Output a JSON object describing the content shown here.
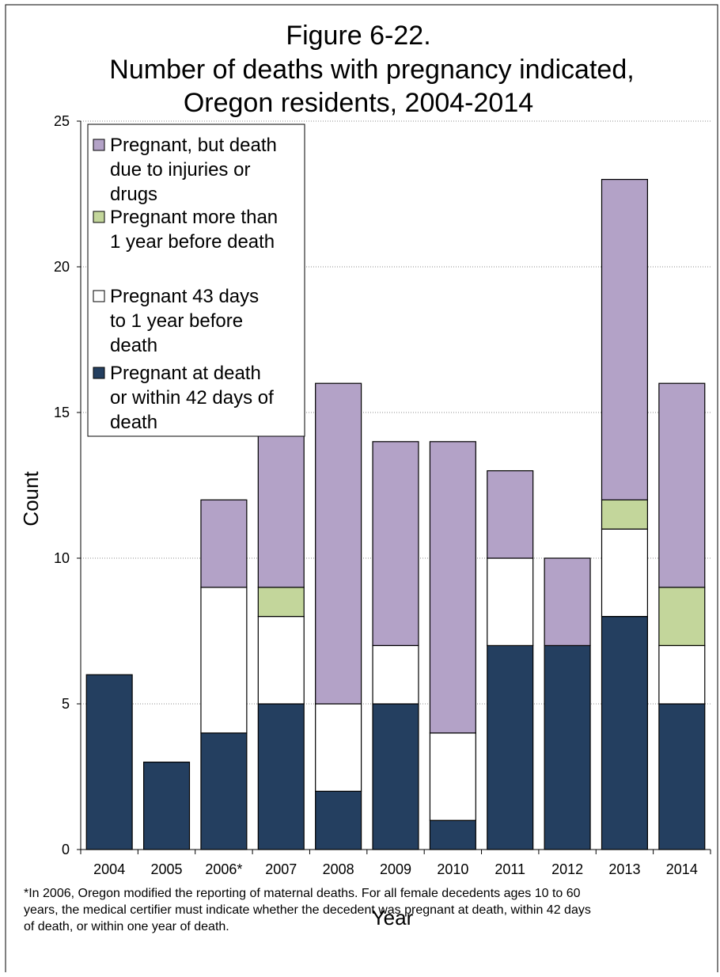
{
  "chart_data": {
    "type": "bar",
    "stacked": true,
    "title": [
      "Figure 6-22.",
      "Number of deaths with pregnancy indicated,",
      "Oregon residents, 2004-2014"
    ],
    "xlabel": "Year",
    "ylabel": "Count",
    "ylim": [
      0,
      25
    ],
    "yticks": [
      0,
      5,
      10,
      15,
      20,
      25
    ],
    "grid": true,
    "legend_position": "top-left",
    "categories": [
      "2004",
      "2005",
      "2006*",
      "2007",
      "2008",
      "2009",
      "2010",
      "2011",
      "2012",
      "2013",
      "2014"
    ],
    "series": [
      {
        "name": "Pregnant at death or within 42 days of death",
        "color": "#243f60",
        "values": [
          6,
          3,
          4,
          5,
          2,
          5,
          1,
          7,
          7,
          8,
          5
        ]
      },
      {
        "name": "Pregnant 43 days to 1 year before death",
        "color": "#ffffff",
        "values": [
          0,
          0,
          5,
          3,
          3,
          2,
          3,
          3,
          0,
          3,
          2
        ]
      },
      {
        "name": "Pregnant more than 1 year before death",
        "color": "#c3d69b",
        "values": [
          0,
          0,
          0,
          1,
          0,
          0,
          0,
          0,
          0,
          1,
          2
        ]
      },
      {
        "name": "Pregnant, but death due to injuries or drugs",
        "color": "#b3a2c7",
        "values": [
          0,
          0,
          3,
          6,
          11,
          7,
          10,
          3,
          3,
          11,
          7
        ]
      }
    ],
    "legend": [
      {
        "series": 3,
        "lines": [
          "Pregnant, but death",
          "due to injuries or",
          "drugs"
        ]
      },
      {
        "series": 2,
        "lines": [
          "Pregnant more than",
          "1 year before death"
        ]
      },
      {
        "series": 1,
        "lines": [
          "Pregnant 43 days",
          "to 1 year before",
          "death"
        ]
      },
      {
        "series": 0,
        "lines": [
          "Pregnant at death",
          "or within 42 days of",
          "death"
        ]
      }
    ]
  },
  "footnote": [
    "*In 2006, Oregon modified the reporting of maternal deaths. For all female decedents ages 10 to 60",
    "years, the medical certifier must indicate whether the decedent was pregnant at death, within 42 days",
    "of death, or within one year of death."
  ]
}
